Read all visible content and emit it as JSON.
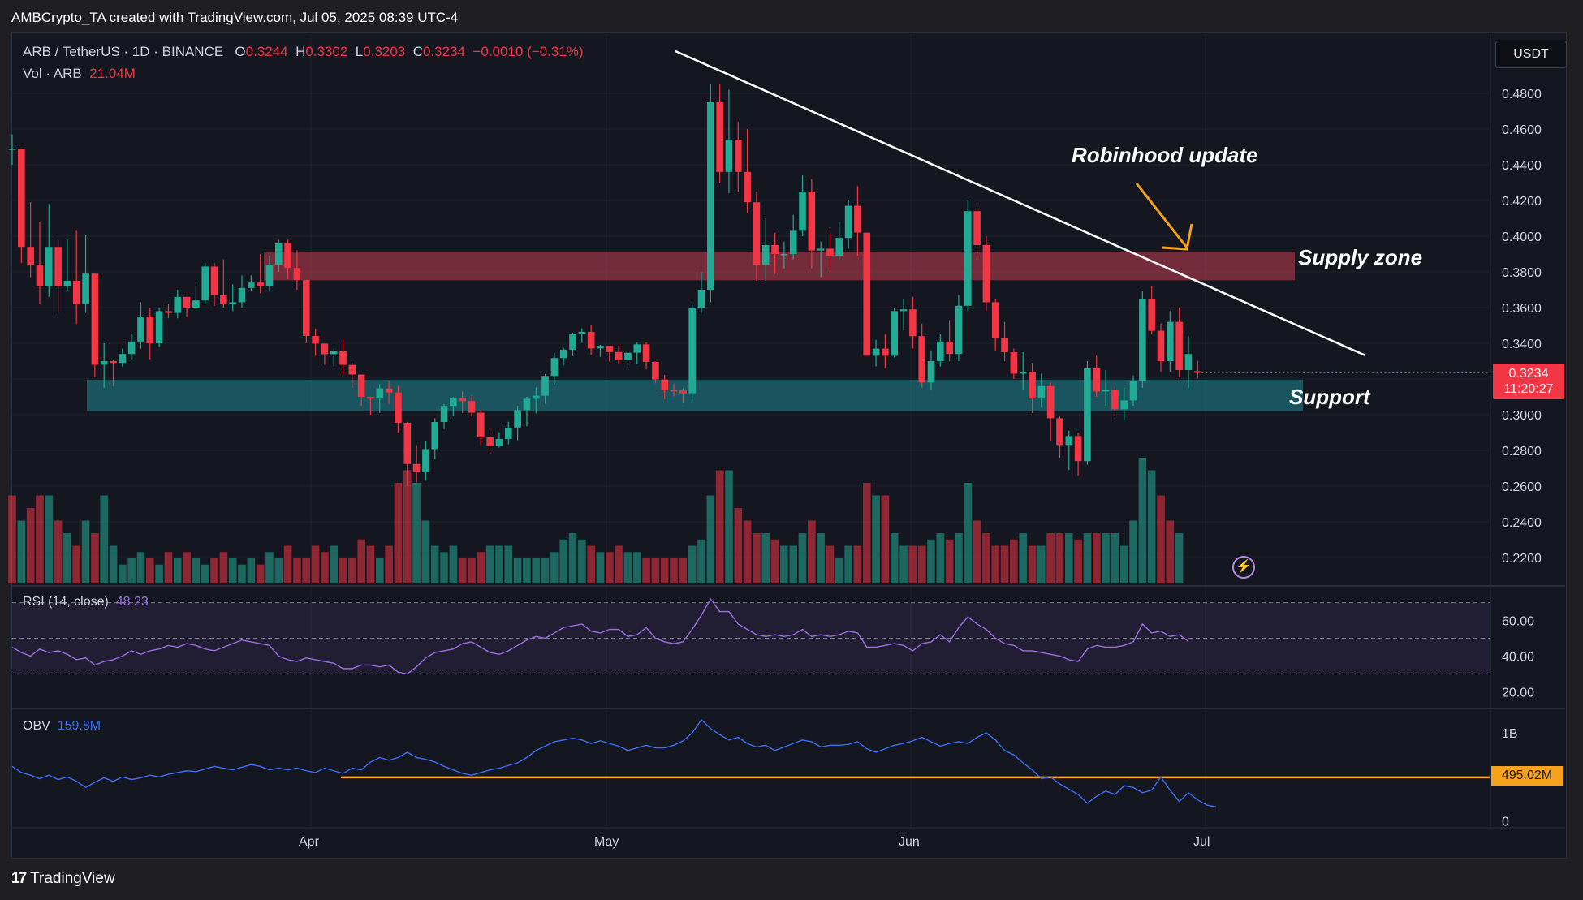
{
  "attribution": "AMBCrypto_TA created with TradingView.com, Jul 05, 2025 08:39 UTC-4",
  "legend": {
    "symbol": "ARB / TetherUS · 1D · BINANCE",
    "open_label": "O",
    "open": "0.3244",
    "high_label": "H",
    "high": "0.3302",
    "low_label": "L",
    "low": "0.3203",
    "close_label": "C",
    "close": "0.3234",
    "change": "−0.0010 (−0.31%)",
    "vol_label": "Vol · ARB",
    "vol_value": "21.04M",
    "rsi_label": "RSI (14, close)",
    "rsi_value": "48.23",
    "obv_label": "OBV",
    "obv_value": "159.8M"
  },
  "currency_button": "USDT",
  "price_badge": {
    "price": "0.3234",
    "countdown": "11:20:27"
  },
  "obv_badge": "495.02M",
  "annotations": {
    "robinhood": "Robinhood update",
    "supply": "Supply zone",
    "support": "Support"
  },
  "footer_brand": "TradingView",
  "colors": {
    "up": "#22ab94",
    "down": "#f23645",
    "supply_zone": "#c24050",
    "support_zone": "#1f8a94",
    "rsi_line": "#9b6fe0",
    "obv_line": "#3d6ff5",
    "arrow": "#f7a21b"
  },
  "chart_data": [
    {
      "type": "candlestick",
      "price_axis": {
        "ylim": [
          0.205,
          0.505
        ],
        "ticks": [
          "0.2200",
          "0.2400",
          "0.2600",
          "0.2800",
          "0.3000",
          "0.3200",
          "0.3400",
          "0.3600",
          "0.3800",
          "0.4000",
          "0.4200",
          "0.4400",
          "0.4600",
          "0.4800"
        ]
      },
      "x_labels": [
        "Apr",
        "May",
        "Jun",
        "Jul"
      ],
      "closes": [
        0.449,
        0.394,
        0.384,
        0.372,
        0.394,
        0.372,
        0.375,
        0.362,
        0.379,
        0.328,
        0.33,
        0.329,
        0.334,
        0.341,
        0.355,
        0.34,
        0.358,
        0.357,
        0.366,
        0.36,
        0.364,
        0.383,
        0.367,
        0.362,
        0.363,
        0.371,
        0.374,
        0.372,
        0.384,
        0.396,
        0.3822,
        0.3754,
        0.3441,
        0.3398,
        0.3339,
        0.3355,
        0.3279,
        0.3225,
        0.31,
        0.309,
        0.3147,
        0.3124,
        0.2955,
        0.2724,
        0.2677,
        0.2807,
        0.2959,
        0.3049,
        0.3093,
        0.3076,
        0.3011,
        0.2873,
        0.2825,
        0.2864,
        0.2928,
        0.3026,
        0.3089,
        0.3106,
        0.3217,
        0.3317,
        0.3364,
        0.3452,
        0.3464,
        0.3371,
        0.3386,
        0.3351,
        0.3306,
        0.3347,
        0.3394,
        0.3296,
        0.3197,
        0.3137,
        0.3135,
        0.312,
        0.36,
        0.37,
        0.475,
        0.436,
        0.454,
        0.436,
        0.419,
        0.384,
        0.395,
        0.39,
        0.39,
        0.403,
        0.425,
        0.392,
        0.393,
        0.389,
        0.399,
        0.417,
        0.402,
        0.333,
        0.337,
        0.333,
        0.358,
        0.359,
        0.344,
        0.318,
        0.33,
        0.341,
        0.334,
        0.361,
        0.414,
        0.395,
        0.363,
        0.343,
        0.335,
        0.323,
        0.324,
        0.309,
        0.316,
        0.298,
        0.283,
        0.288,
        0.274,
        0.326,
        0.313,
        0.314,
        0.303,
        0.308,
        0.319,
        0.365,
        0.347,
        0.33,
        0.352,
        0.325,
        0.334,
        0.3234
      ],
      "highs": [
        0.457,
        0.448,
        0.419,
        0.408,
        0.418,
        0.398,
        0.398,
        0.403,
        0.401,
        0.369,
        0.34,
        0.331,
        0.337,
        0.345,
        0.363,
        0.36,
        0.36,
        0.362,
        0.37,
        0.362,
        0.373,
        0.385,
        0.385,
        0.387,
        0.373,
        0.378,
        0.378,
        0.39,
        0.389,
        0.398,
        0.398,
        0.392,
        0.375,
        0.348,
        0.34,
        0.337,
        0.342,
        0.329,
        0.322,
        0.31,
        0.317,
        0.319,
        0.316,
        0.296,
        0.283,
        0.285,
        0.298,
        0.306,
        0.31,
        0.313,
        0.311,
        0.303,
        0.2915,
        0.2902,
        0.296,
        0.305,
        0.31,
        0.3152,
        0.3228,
        0.3347,
        0.3372,
        0.3459,
        0.3484,
        0.3505,
        0.3392,
        0.338,
        0.3386,
        0.3355,
        0.3404,
        0.3405,
        0.3298,
        0.3223,
        0.3174,
        0.3148,
        0.362,
        0.38,
        0.485,
        0.485,
        0.482,
        0.464,
        0.46,
        0.425,
        0.41,
        0.402,
        0.397,
        0.412,
        0.434,
        0.432,
        0.397,
        0.402,
        0.408,
        0.42,
        0.428,
        0.402,
        0.342,
        0.345,
        0.36,
        0.365,
        0.366,
        0.351,
        0.336,
        0.345,
        0.353,
        0.367,
        0.42,
        0.417,
        0.4,
        0.365,
        0.352,
        0.337,
        0.335,
        0.329,
        0.323,
        0.318,
        0.299,
        0.291,
        0.29,
        0.33,
        0.333,
        0.325,
        0.316,
        0.315,
        0.322,
        0.369,
        0.372,
        0.351,
        0.358,
        0.36,
        0.344,
        0.3302
      ],
      "lows": [
        0.44,
        0.385,
        0.377,
        0.362,
        0.366,
        0.357,
        0.369,
        0.351,
        0.357,
        0.321,
        0.315,
        0.316,
        0.327,
        0.331,
        0.337,
        0.331,
        0.338,
        0.354,
        0.354,
        0.355,
        0.36,
        0.362,
        0.361,
        0.36,
        0.358,
        0.36,
        0.369,
        0.368,
        0.369,
        0.38,
        0.376,
        0.37,
        0.34,
        0.333,
        0.328,
        0.327,
        0.322,
        0.315,
        0.305,
        0.3,
        0.301,
        0.306,
        0.29,
        0.26,
        0.262,
        0.263,
        0.275,
        0.292,
        0.299,
        0.301,
        0.299,
        0.283,
        0.2782,
        0.2816,
        0.2834,
        0.2857,
        0.2935,
        0.3007,
        0.3061,
        0.3168,
        0.3275,
        0.3327,
        0.3402,
        0.3336,
        0.3324,
        0.3298,
        0.3288,
        0.326,
        0.3284,
        0.3254,
        0.3176,
        0.3086,
        0.3102,
        0.3066,
        0.3078,
        0.357,
        0.363,
        0.43,
        0.424,
        0.425,
        0.413,
        0.375,
        0.375,
        0.379,
        0.382,
        0.387,
        0.4,
        0.382,
        0.377,
        0.382,
        0.387,
        0.393,
        0.389,
        0.333,
        0.327,
        0.326,
        0.332,
        0.347,
        0.337,
        0.315,
        0.314,
        0.327,
        0.33,
        0.33,
        0.358,
        0.388,
        0.358,
        0.336,
        0.33,
        0.32,
        0.314,
        0.301,
        0.304,
        0.285,
        0.276,
        0.269,
        0.266,
        0.272,
        0.31,
        0.305,
        0.299,
        0.297,
        0.305,
        0.315,
        0.345,
        0.324,
        0.324,
        0.321,
        0.315,
        0.3203
      ],
      "opens": [
        0.449,
        0.449,
        0.394,
        0.384,
        0.372,
        0.394,
        0.372,
        0.375,
        0.362,
        0.379,
        0.328,
        0.33,
        0.329,
        0.334,
        0.341,
        0.355,
        0.34,
        0.358,
        0.357,
        0.366,
        0.36,
        0.364,
        0.383,
        0.367,
        0.362,
        0.363,
        0.371,
        0.374,
        0.372,
        0.384,
        0.396,
        0.3822,
        0.3754,
        0.3441,
        0.3398,
        0.3339,
        0.3355,
        0.3279,
        0.3225,
        0.31,
        0.309,
        0.3147,
        0.3124,
        0.2955,
        0.2724,
        0.2677,
        0.2807,
        0.2959,
        0.3049,
        0.3093,
        0.3076,
        0.3011,
        0.2873,
        0.2825,
        0.2864,
        0.2928,
        0.3026,
        0.3089,
        0.3106,
        0.3217,
        0.3317,
        0.3364,
        0.3452,
        0.3464,
        0.3371,
        0.3386,
        0.3351,
        0.3306,
        0.3347,
        0.3394,
        0.3296,
        0.3197,
        0.3137,
        0.3135,
        0.312,
        0.36,
        0.37,
        0.475,
        0.436,
        0.454,
        0.436,
        0.419,
        0.384,
        0.395,
        0.39,
        0.39,
        0.403,
        0.425,
        0.392,
        0.393,
        0.389,
        0.399,
        0.417,
        0.402,
        0.333,
        0.337,
        0.333,
        0.358,
        0.359,
        0.344,
        0.318,
        0.33,
        0.341,
        0.334,
        0.361,
        0.414,
        0.395,
        0.363,
        0.343,
        0.335,
        0.323,
        0.324,
        0.309,
        0.316,
        0.298,
        0.283,
        0.288,
        0.274,
        0.326,
        0.313,
        0.314,
        0.303,
        0.308,
        0.319,
        0.365,
        0.347,
        0.33,
        0.352,
        0.325,
        0.3244
      ],
      "volumes": [
        7,
        5,
        6,
        7,
        7,
        5,
        4,
        3,
        5,
        4,
        7,
        3,
        1.5,
        2,
        2.5,
        2,
        1.5,
        2.5,
        2,
        2.5,
        2,
        1.5,
        2,
        2.5,
        2,
        1.5,
        2,
        1.5,
        2.5,
        2,
        3,
        2,
        2,
        3,
        2.5,
        3,
        2,
        2,
        3.5,
        3,
        2,
        3,
        8,
        9,
        8,
        5,
        3,
        2.5,
        3,
        2,
        2,
        2.5,
        3,
        3,
        3,
        2,
        2,
        2,
        2,
        2.5,
        3.5,
        4,
        3.5,
        3,
        2.5,
        2.5,
        3,
        2.5,
        2.5,
        2,
        2,
        2,
        2,
        2,
        3,
        3.5,
        7,
        9,
        9,
        6,
        5,
        4,
        4,
        3.5,
        3,
        3,
        4,
        5,
        4,
        3,
        2,
        3,
        3,
        8,
        7,
        7,
        4,
        3,
        3,
        3,
        3.5,
        4,
        3.5,
        4,
        8,
        5,
        4,
        3,
        3,
        3.5,
        4,
        3,
        3,
        4,
        4,
        4,
        3.5,
        4,
        4,
        4,
        4,
        3,
        5,
        10,
        9,
        7,
        5,
        4
      ],
      "volume_up": [
        false,
        true,
        false,
        false,
        true,
        false,
        true,
        false,
        true,
        false,
        true,
        true,
        true,
        true,
        true,
        false,
        true,
        false,
        true,
        false,
        true,
        true,
        false,
        false,
        true,
        true,
        true,
        false,
        true,
        true,
        false,
        false,
        false,
        false,
        false,
        true,
        false,
        false,
        false,
        false,
        true,
        false,
        false,
        false,
        true,
        true,
        true,
        true,
        true,
        false,
        false,
        false,
        true,
        true,
        true,
        true,
        true,
        true,
        true,
        true,
        true,
        true,
        true,
        false,
        true,
        false,
        false,
        true,
        true,
        false,
        false,
        false,
        false,
        false,
        true,
        true,
        true,
        false,
        true,
        false,
        false,
        false,
        true,
        false,
        true,
        true,
        true,
        false,
        true,
        false,
        true,
        true,
        false,
        false,
        true,
        false,
        true,
        true,
        false,
        false,
        true,
        true,
        false,
        true,
        true,
        false,
        false,
        false,
        false,
        false,
        true,
        false,
        true,
        false,
        false,
        true,
        false,
        true,
        false,
        true,
        true,
        true,
        true,
        true,
        true,
        false,
        false,
        true,
        false,
        true,
        false
      ]
    },
    {
      "type": "line",
      "name": "RSI (14, close)",
      "ylim": [
        12,
        78
      ],
      "bands": [
        30,
        50,
        70
      ],
      "ticks": [
        "20.00",
        "40.00",
        "60.00"
      ],
      "values": [
        45,
        42,
        40,
        44,
        42,
        43,
        41,
        38,
        39,
        35,
        37,
        38,
        40,
        43,
        41,
        43,
        44,
        46,
        45,
        47,
        46,
        44,
        43,
        45,
        47,
        49,
        48,
        47,
        46,
        40,
        38,
        37,
        39,
        38,
        37,
        36,
        33,
        33,
        35,
        35,
        34,
        35,
        31,
        30,
        34,
        39,
        42,
        43,
        44,
        47,
        48,
        45,
        42,
        41,
        43,
        46,
        49,
        51,
        50,
        53,
        56,
        57,
        58,
        54,
        53,
        55,
        55,
        51,
        52,
        56,
        50,
        48,
        47,
        48,
        55,
        63,
        72,
        65,
        65,
        58,
        55,
        52,
        51,
        52,
        51,
        52,
        55,
        51,
        52,
        51,
        52,
        54,
        53,
        45,
        45,
        46,
        47,
        46,
        43,
        47,
        48,
        52,
        48,
        56,
        62,
        58,
        55,
        50,
        47,
        46,
        43,
        43,
        42,
        41,
        40,
        38,
        37,
        44,
        46,
        45,
        45,
        46,
        48,
        58,
        53,
        54,
        51,
        52,
        48.23
      ]
    },
    {
      "type": "line",
      "name": "OBV",
      "ylim": [
        -0.05,
        1.25
      ],
      "ticks": [
        "0",
        "1B"
      ],
      "reference_level": 0.49502,
      "values": [
        0.62,
        0.55,
        0.52,
        0.48,
        0.52,
        0.47,
        0.5,
        0.45,
        0.38,
        0.44,
        0.49,
        0.45,
        0.5,
        0.47,
        0.49,
        0.52,
        0.5,
        0.53,
        0.55,
        0.57,
        0.56,
        0.59,
        0.62,
        0.6,
        0.58,
        0.61,
        0.64,
        0.62,
        0.58,
        0.6,
        0.58,
        0.6,
        0.57,
        0.55,
        0.6,
        0.57,
        0.54,
        0.6,
        0.58,
        0.67,
        0.72,
        0.69,
        0.72,
        0.78,
        0.72,
        0.7,
        0.67,
        0.62,
        0.58,
        0.54,
        0.52,
        0.55,
        0.58,
        0.6,
        0.63,
        0.66,
        0.72,
        0.8,
        0.85,
        0.9,
        0.92,
        0.94,
        0.92,
        0.88,
        0.91,
        0.88,
        0.85,
        0.8,
        0.83,
        0.86,
        0.83,
        0.83,
        0.86,
        0.91,
        1.0,
        1.15,
        1.05,
        0.98,
        0.92,
        0.95,
        0.88,
        0.84,
        0.86,
        0.8,
        0.84,
        0.88,
        0.92,
        0.9,
        0.84,
        0.86,
        0.86,
        0.87,
        0.9,
        0.82,
        0.78,
        0.82,
        0.86,
        0.88,
        0.91,
        0.95,
        0.9,
        0.85,
        0.88,
        0.9,
        0.88,
        0.95,
        1.0,
        0.92,
        0.8,
        0.75,
        0.66,
        0.58,
        0.48,
        0.5,
        0.42,
        0.36,
        0.3,
        0.2,
        0.28,
        0.34,
        0.3,
        0.4,
        0.38,
        0.32,
        0.35,
        0.5,
        0.35,
        0.22,
        0.32,
        0.24,
        0.18,
        0.16
      ]
    }
  ]
}
